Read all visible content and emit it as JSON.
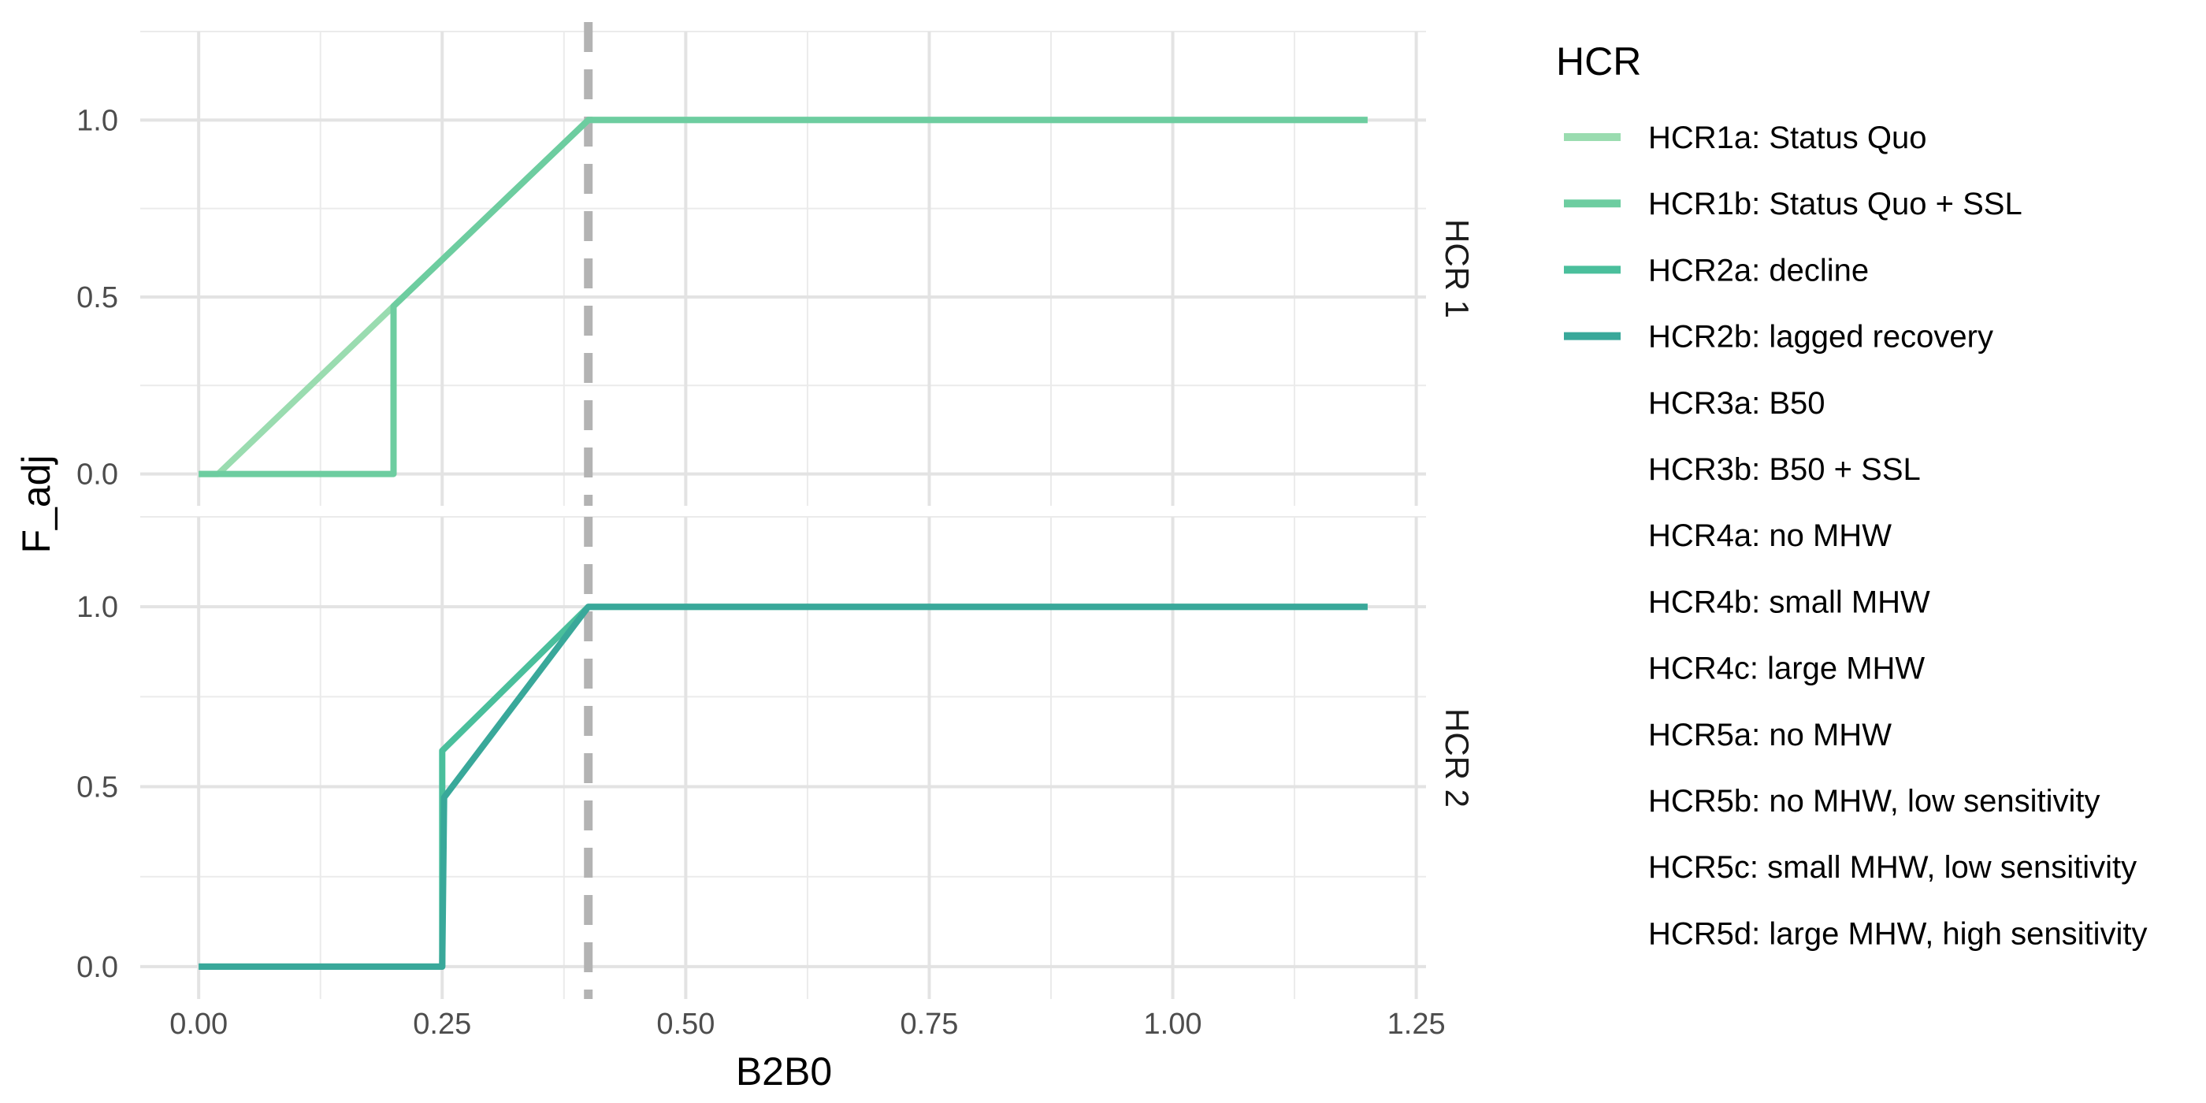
{
  "chart_data": {
    "type": "line",
    "xlabel": "B2B0",
    "ylabel": "F_adj",
    "xlim": [
      -0.06,
      1.26
    ],
    "ylim": [
      -0.09,
      1.25
    ],
    "x_ticks": [
      "0.00",
      "0.25",
      "0.50",
      "0.75",
      "1.00",
      "1.25"
    ],
    "y_ticks": [
      "0.0",
      "0.5",
      "1.0"
    ],
    "x_tick_values": [
      0,
      0.25,
      0.5,
      0.75,
      1.0,
      1.25
    ],
    "y_tick_values": [
      0,
      0.5,
      1.0
    ],
    "grid": true,
    "reference_line": {
      "x": 0.4,
      "style": "dashed",
      "color": "#B3B3B3"
    },
    "legend": {
      "title": "HCR",
      "position": "right",
      "entries": [
        {
          "label": "HCR1a: Status Quo",
          "color": "#9ADCB0"
        },
        {
          "label": "HCR1b: Status Quo + SSL",
          "color": "#6DCDA0"
        },
        {
          "label": "HCR2a: decline",
          "color": "#4ABF9C"
        },
        {
          "label": "HCR2b: lagged recovery",
          "color": "#39A89A"
        },
        {
          "label": "HCR3a: B50",
          "color": null
        },
        {
          "label": "HCR3b: B50 + SSL",
          "color": null
        },
        {
          "label": "HCR4a: no MHW",
          "color": null
        },
        {
          "label": "HCR4b: small MHW",
          "color": null
        },
        {
          "label": "HCR4c: large MHW",
          "color": null
        },
        {
          "label": "HCR5a: no MHW",
          "color": null
        },
        {
          "label": "HCR5b: no MHW, low sensitivity",
          "color": null
        },
        {
          "label": "HCR5c: small MHW, low sensitivity",
          "color": null
        },
        {
          "label": "HCR5d: large MHW, high sensitivity",
          "color": null
        }
      ]
    },
    "panels": [
      {
        "strip_label": "HCR 1",
        "series": [
          {
            "name": "HCR1a: Status Quo",
            "color": "#9ADCB0",
            "x": [
              0,
              0.02,
              0.4,
              1.2
            ],
            "y": [
              0,
              0,
              1,
              1
            ]
          },
          {
            "name": "HCR1b: Status Quo + SSL",
            "color": "#6DCDA0",
            "x": [
              0,
              0.2,
              0.2,
              0.4,
              1.2
            ],
            "y": [
              0,
              0,
              0.474,
              1,
              1
            ]
          }
        ]
      },
      {
        "strip_label": "HCR 2",
        "series": [
          {
            "name": "HCR2a: decline",
            "color": "#4ABF9C",
            "x": [
              0,
              0.25,
              0.25,
              0.4,
              1.2
            ],
            "y": [
              0,
              0,
              0.6,
              1,
              1
            ]
          },
          {
            "name": "HCR2b: lagged recovery",
            "color": "#39A89A",
            "x": [
              0,
              0.25,
              0.252,
              0.4,
              1.2
            ],
            "y": [
              0,
              0,
              0.47,
              1,
              1
            ]
          }
        ]
      }
    ]
  }
}
